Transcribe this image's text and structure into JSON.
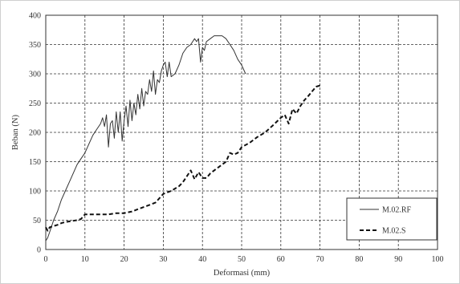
{
  "chart_data": {
    "type": "line",
    "title": "",
    "xlabel": "Deformasi (mm)",
    "ylabel": "Beban (N)",
    "xlim": [
      0,
      100
    ],
    "ylim": [
      0,
      400
    ],
    "xticks": [
      0,
      10,
      20,
      30,
      40,
      50,
      60,
      70,
      80,
      90,
      100
    ],
    "yticks": [
      0,
      50,
      100,
      150,
      200,
      250,
      300,
      350,
      400
    ],
    "grid": true,
    "legend_position": "bottom-right",
    "series": [
      {
        "name": "M.02.RF",
        "style": "solid",
        "color": "#333333",
        "x": [
          0,
          0.5,
          1,
          2,
          3,
          4,
          5,
          6,
          7,
          8,
          9,
          10,
          11,
          12,
          13,
          14,
          14.5,
          15,
          15.5,
          16,
          16.5,
          17,
          17.5,
          18,
          18.5,
          19,
          19.5,
          20,
          20.5,
          21,
          21.5,
          22,
          22.5,
          23,
          23.5,
          24,
          24.5,
          25,
          25.5,
          26,
          26.5,
          27,
          27.5,
          28,
          28.5,
          29,
          29.5,
          30,
          30.5,
          31,
          31.5,
          32,
          33,
          34,
          35,
          36,
          37,
          38,
          38.5,
          39,
          39.5,
          40,
          40.5,
          41,
          42,
          43,
          44,
          45,
          46,
          47,
          48,
          49,
          50,
          51
        ],
        "y": [
          15,
          20,
          30,
          50,
          65,
          85,
          100,
          115,
          130,
          145,
          155,
          165,
          180,
          195,
          205,
          215,
          225,
          210,
          230,
          175,
          215,
          220,
          190,
          235,
          200,
          235,
          185,
          220,
          245,
          210,
          255,
          220,
          250,
          230,
          265,
          240,
          275,
          245,
          270,
          265,
          290,
          270,
          305,
          265,
          290,
          285,
          305,
          315,
          320,
          295,
          320,
          295,
          300,
          315,
          335,
          345,
          350,
          360,
          355,
          360,
          320,
          345,
          340,
          355,
          360,
          365,
          365,
          365,
          360,
          350,
          340,
          325,
          315,
          300
        ]
      },
      {
        "name": "M.02.S",
        "style": "dashed",
        "color": "#111111",
        "x": [
          0,
          0.5,
          1,
          2,
          3,
          4,
          5,
          6,
          7,
          8,
          9,
          10,
          12,
          14,
          16,
          18,
          20,
          22,
          24,
          26,
          28,
          30,
          32,
          34,
          35,
          36,
          37,
          38,
          39,
          40,
          41,
          42,
          43,
          44,
          45,
          46,
          47,
          48,
          49,
          50,
          52,
          54,
          56,
          58,
          60,
          61,
          62,
          63,
          64,
          65,
          66,
          67,
          68,
          69,
          70
        ],
        "y": [
          38,
          32,
          38,
          40,
          42,
          45,
          47,
          48,
          49,
          50,
          52,
          60,
          60,
          60,
          60,
          62,
          62,
          65,
          70,
          75,
          80,
          95,
          100,
          108,
          115,
          125,
          135,
          120,
          132,
          122,
          122,
          130,
          135,
          140,
          145,
          150,
          165,
          162,
          165,
          175,
          182,
          192,
          200,
          212,
          225,
          230,
          215,
          240,
          232,
          245,
          255,
          262,
          270,
          278,
          280
        ]
      }
    ]
  }
}
